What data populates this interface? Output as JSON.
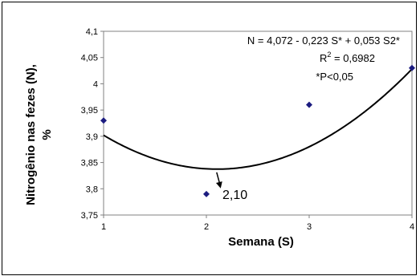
{
  "chart_data": {
    "type": "scatter",
    "xlabel": "Semana (S)",
    "ylabel_line1": "Nitrogênio nas fezes (N),",
    "ylabel_line2": "%",
    "xlim": [
      1,
      4
    ],
    "ylim": [
      3.75,
      4.1
    ],
    "x_ticks": [
      "1",
      "2",
      "3",
      "4"
    ],
    "y_ticks": [
      "3,75",
      "3,8",
      "3,85",
      "3,9",
      "3,95",
      "4",
      "4,05",
      "4,1"
    ],
    "grid": false,
    "marker_color": "#1c1c80",
    "points": [
      {
        "x": 1,
        "y": 3.93
      },
      {
        "x": 2,
        "y": 3.79
      },
      {
        "x": 3,
        "y": 3.96
      },
      {
        "x": 4,
        "y": 4.03
      }
    ],
    "trendline": {
      "type": "quadratic",
      "a": 4.072,
      "b": -0.223,
      "c": 0.053
    },
    "equation": {
      "line1": "N =  4,072 - 0,223 S* + 0,053 S2*",
      "r2_prefix": "R",
      "r2_sup": "2",
      "r2_value": " = 0,6982",
      "significance": "*P<0,05"
    },
    "minimum_annotation": {
      "label": "2,10",
      "x": 2.1
    }
  }
}
